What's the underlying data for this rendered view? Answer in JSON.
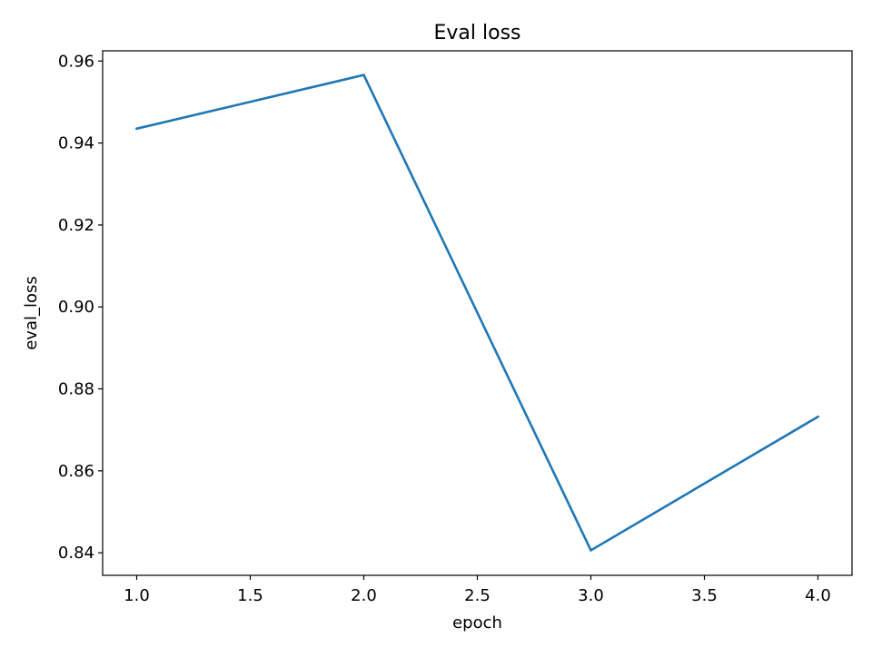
{
  "chart_data": {
    "type": "line",
    "title": "Eval loss",
    "xlabel": "epoch",
    "ylabel": "eval_loss",
    "xlim": [
      0.85,
      4.15
    ],
    "ylim": [
      0.8345,
      0.9625
    ],
    "x_ticks": [
      1.0,
      1.5,
      2.0,
      2.5,
      3.0,
      3.5,
      4.0
    ],
    "x_tick_labels": [
      "1.0",
      "1.5",
      "2.0",
      "2.5",
      "3.0",
      "3.5",
      "4.0"
    ],
    "y_ticks": [
      0.84,
      0.86,
      0.88,
      0.9,
      0.92,
      0.94,
      0.96
    ],
    "y_tick_labels": [
      "0.84",
      "0.86",
      "0.88",
      "0.90",
      "0.92",
      "0.94",
      "0.96"
    ],
    "grid": false,
    "series": [
      {
        "color": "#1f77b4",
        "x": [
          1.0,
          2.0,
          3.0,
          4.0
        ],
        "y": [
          0.9435,
          0.9566,
          0.8406,
          0.8732
        ]
      }
    ]
  }
}
